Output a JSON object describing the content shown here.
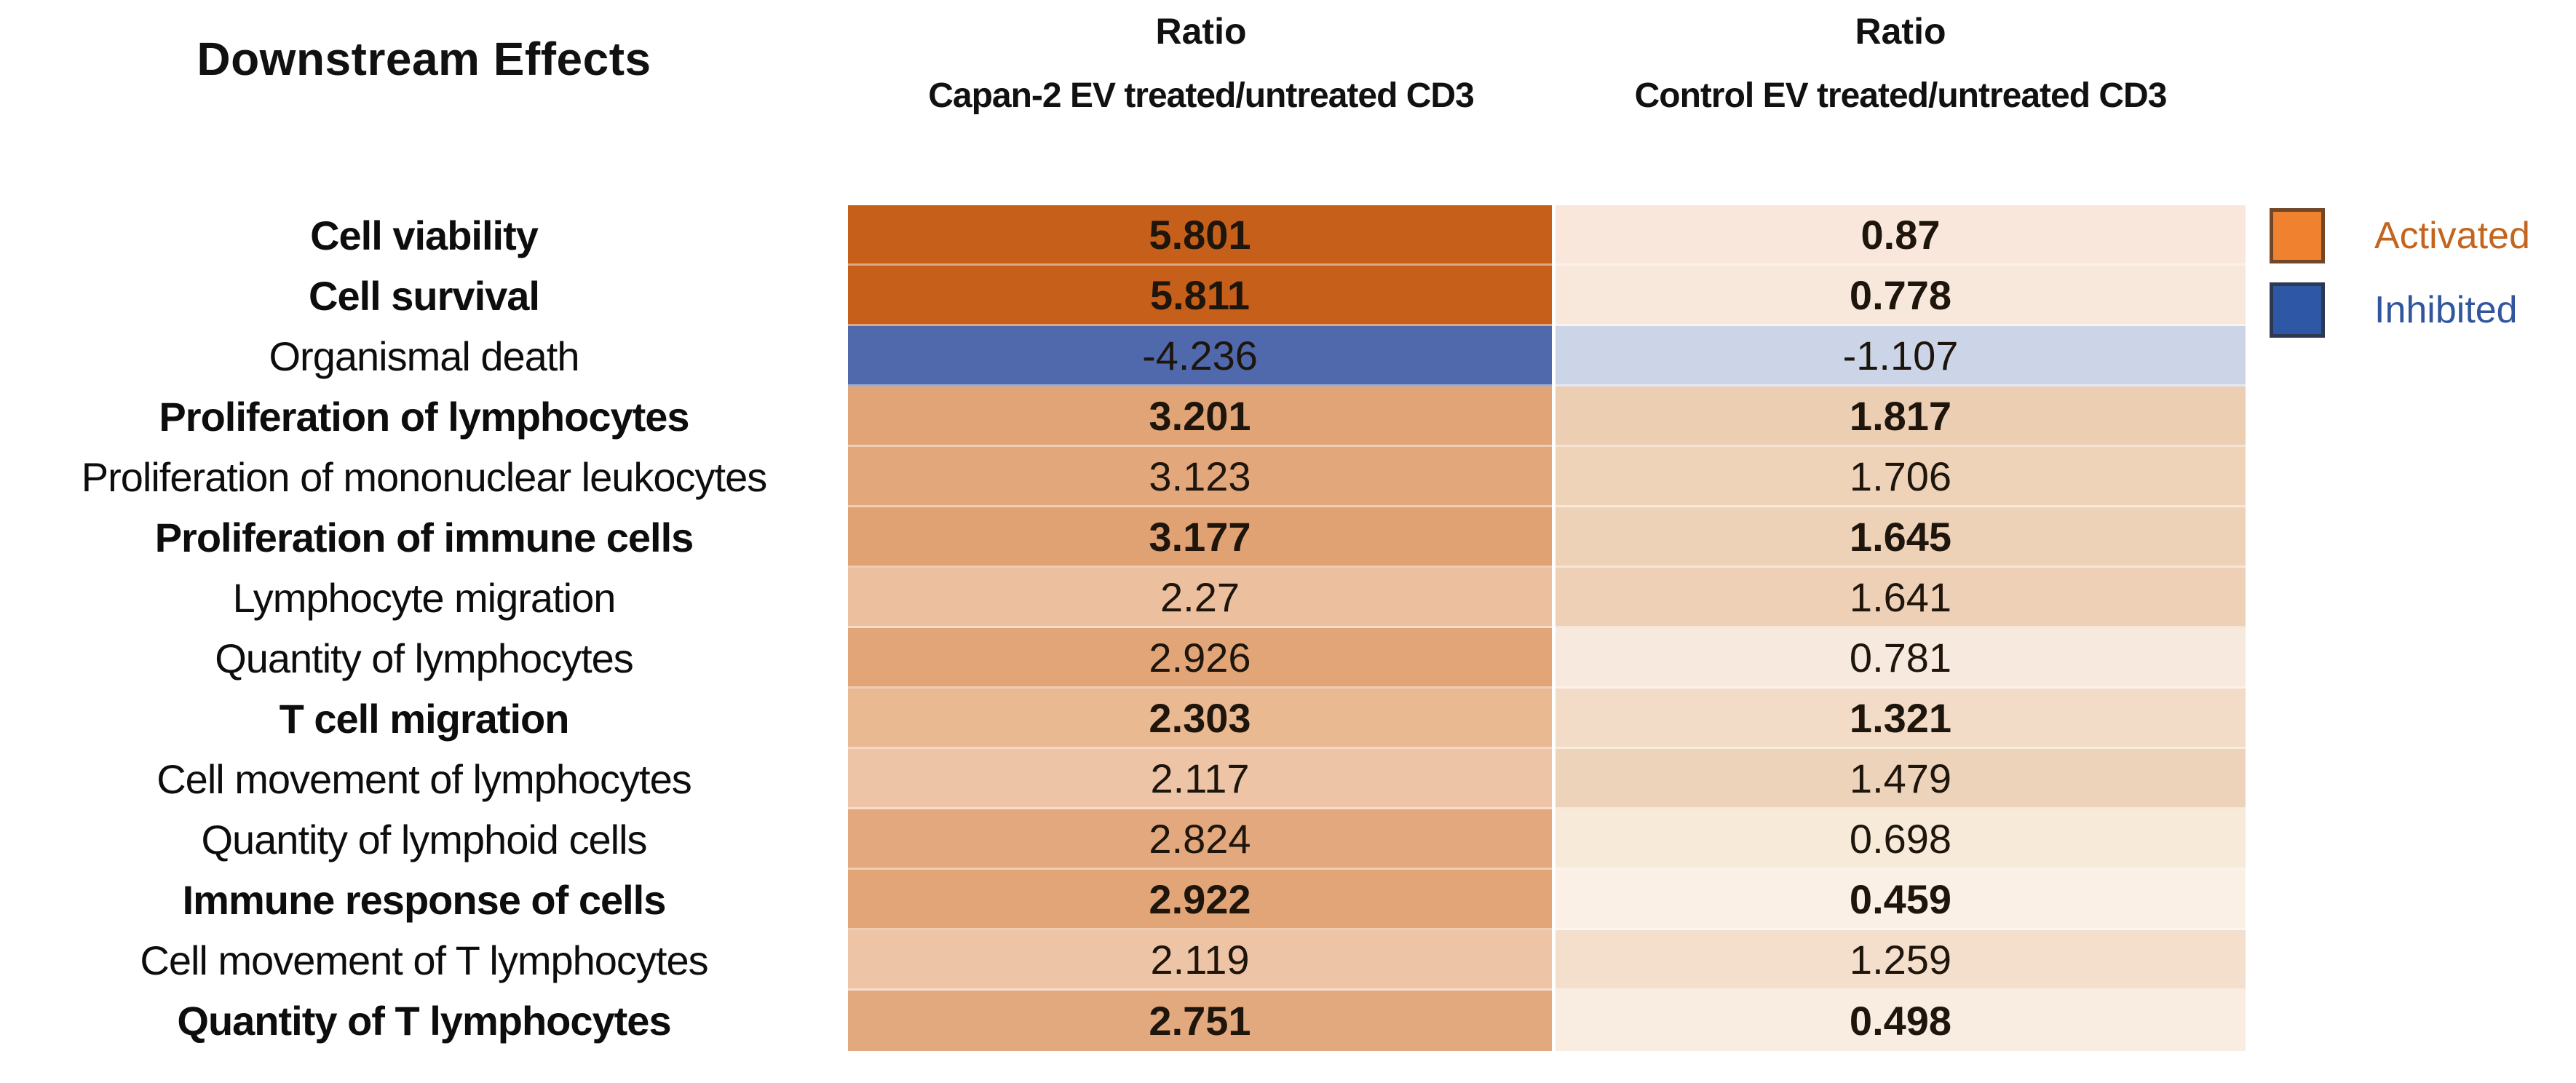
{
  "title": "Downstream Effects",
  "columns": {
    "capan2": {
      "ratio_label": "Ratio",
      "subtitle": "Capan-2 EV treated/untreated CD3"
    },
    "control": {
      "ratio_label": "Ratio",
      "subtitle": "Control EV treated/untreated CD3"
    }
  },
  "rows": [
    {
      "label": "Cell viability",
      "bold": true,
      "capan2": "5.801",
      "capan2_color": "#c65f1a",
      "control": "0.87",
      "control_color": "#f8e7da"
    },
    {
      "label": "Cell survival",
      "bold": true,
      "capan2": "5.811",
      "capan2_color": "#c65f1a",
      "control": "0.778",
      "control_color": "#f8e8db"
    },
    {
      "label": "Organismal death",
      "bold": false,
      "capan2": "-4.236",
      "capan2_color": "#5069ad",
      "control": "-1.107",
      "control_color": "#ccd5e8"
    },
    {
      "label": "Proliferation of lymphocytes",
      "bold": true,
      "capan2": "3.201",
      "capan2_color": "#e1a477",
      "control": "1.817",
      "control_color": "#ecceb2"
    },
    {
      "label": "Proliferation of mononuclear leukocytes",
      "bold": false,
      "capan2": "3.123",
      "capan2_color": "#e2a77b",
      "control": "1.706",
      "control_color": "#eed3b9"
    },
    {
      "label": "Proliferation of immune cells",
      "bold": true,
      "capan2": "3.177",
      "capan2_color": "#e0a173",
      "control": "1.645",
      "control_color": "#eed2b8"
    },
    {
      "label": "Lymphocyte migration",
      "bold": false,
      "capan2": "2.27",
      "capan2_color": "#ecc09e",
      "control": "1.641",
      "control_color": "#edd0b5"
    },
    {
      "label": "Quantity of lymphocytes",
      "bold": false,
      "capan2": "2.926",
      "capan2_color": "#e2a577",
      "control": "0.781",
      "control_color": "#f7e9dd"
    },
    {
      "label": "T cell migration",
      "bold": true,
      "capan2": "2.303",
      "capan2_color": "#e9b992",
      "control": "1.321",
      "control_color": "#f2dcc8"
    },
    {
      "label": "Cell movement of lymphocytes",
      "bold": false,
      "capan2": "2.117",
      "capan2_color": "#edc4a6",
      "control": "1.479",
      "control_color": "#eed3bb"
    },
    {
      "label": "Quantity of lymphoid cells",
      "bold": false,
      "capan2": "2.824",
      "capan2_color": "#e3a87d",
      "control": "0.698",
      "control_color": "#f8ead9"
    },
    {
      "label": "Immune response of cells",
      "bold": true,
      "capan2": "2.922",
      "capan2_color": "#e2a577",
      "control": "0.459",
      "control_color": "#faf0e6"
    },
    {
      "label": "Cell movement of T lymphocytes",
      "bold": false,
      "capan2": "2.119",
      "capan2_color": "#edc4a6",
      "control": "1.259",
      "control_color": "#f4dfcd"
    },
    {
      "label": "Quantity of T lymphocytes",
      "bold": true,
      "capan2": "2.751",
      "capan2_color": "#e3a97e",
      "control": "0.498",
      "control_color": "#f9ece0"
    }
  ],
  "legend": {
    "activated": {
      "label": "Activated",
      "swatch_color": "#f0812e",
      "label_color": "#c4651f"
    },
    "inhibited": {
      "label": "Inhibited",
      "swatch_color": "#2e58a6",
      "label_color": "#31569e"
    }
  },
  "chart_data": {
    "type": "heatmap",
    "title": "Downstream Effects",
    "columns": [
      "Ratio Capan-2 EV treated/untreated CD3",
      "Ratio Control EV treated/untreated CD3"
    ],
    "row_labels": [
      "Cell viability",
      "Cell survival",
      "Organismal death",
      "Proliferation of lymphocytes",
      "Proliferation of mononuclear leukocytes",
      "Proliferation of immune cells",
      "Lymphocyte migration",
      "Quantity of lymphocytes",
      "T cell migration",
      "Cell movement of lymphocytes",
      "Quantity of lymphoid cells",
      "Immune response of cells",
      "Cell movement of T lymphocytes",
      "Quantity of T lymphocytes"
    ],
    "values": [
      [
        5.801,
        0.87
      ],
      [
        5.811,
        0.778
      ],
      [
        -4.236,
        -1.107
      ],
      [
        3.201,
        1.817
      ],
      [
        3.123,
        1.706
      ],
      [
        3.177,
        1.645
      ],
      [
        2.27,
        1.641
      ],
      [
        2.926,
        0.781
      ],
      [
        2.303,
        1.321
      ],
      [
        2.117,
        1.479
      ],
      [
        2.824,
        0.698
      ],
      [
        2.922,
        0.459
      ],
      [
        2.119,
        1.259
      ],
      [
        2.751,
        0.498
      ]
    ],
    "legend_entries": [
      "Activated",
      "Inhibited"
    ],
    "color_coding": {
      "activated_positive": "#f0812e",
      "inhibited_negative": "#2e58a6"
    },
    "legend_position": "right"
  }
}
